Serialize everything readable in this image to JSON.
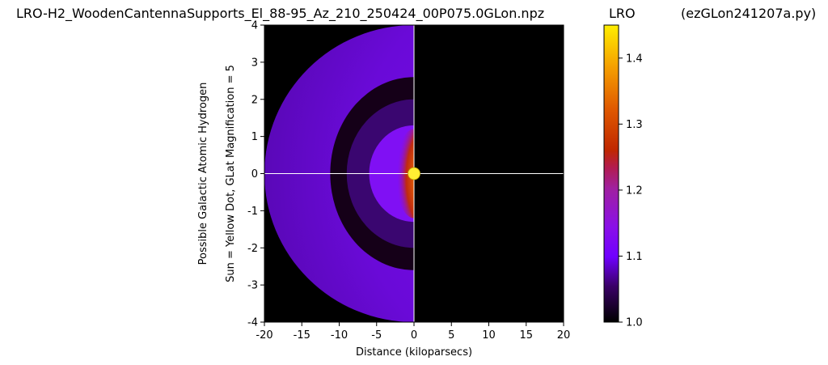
{
  "titles": {
    "main": "LRO-H2_WoodenCantennaSupports_El_88-95_Az_210_250424_00P075.0GLon.npz",
    "colorbar": "LRO",
    "script": "(ezGLon241207a.py)"
  },
  "colors": {
    "sun": "#ffee33",
    "background": "#000000",
    "crosshair": "#ffffff"
  },
  "colormap": "gnuplot",
  "chart_data": {
    "type": "heatmap",
    "xlabel": "Distance (kiloparsecs)",
    "ylabel_lines": [
      "Possible Galactic Atomic Hydrogen",
      "Sun = Yellow Dot, GLat Magnification = 5"
    ],
    "xlim": [
      -20,
      20
    ],
    "ylim": [
      -4,
      4
    ],
    "x_ticks": [
      "-20",
      "-15",
      "-10",
      "-5",
      "0",
      "5",
      "10",
      "15",
      "20"
    ],
    "y_ticks": [
      "-4",
      "-3",
      "-2",
      "-1",
      "0",
      "1",
      "2",
      "3",
      "4"
    ],
    "sun_position": [
      0,
      0
    ],
    "crosshair": {
      "x": 0,
      "y": 0
    },
    "colorbar": {
      "label": "LRO",
      "range": [
        1.0,
        1.45
      ],
      "ticks": [
        "1.0",
        "1.1",
        "1.2",
        "1.3",
        "1.4"
      ]
    },
    "features": [
      {
        "name": "outer disk",
        "shape": "half-ellipse",
        "rx": 20,
        "ry": 4,
        "value": 1.08
      },
      {
        "name": "ring",
        "shape": "half-ellipse",
        "rx": 10.5,
        "ry": 2.45,
        "value": 1.1
      },
      {
        "name": "inner ring",
        "shape": "half-ellipse",
        "rx": 9.5,
        "ry": 2.15,
        "value": 1.1
      },
      {
        "name": "core",
        "shape": "half-ellipse",
        "rx": 6,
        "ry": 1.3,
        "value": 1.12
      },
      {
        "name": "hot core",
        "shape": "half-ellipse",
        "rx": 2.5,
        "ry": 1.2,
        "value": 1.38
      }
    ]
  }
}
